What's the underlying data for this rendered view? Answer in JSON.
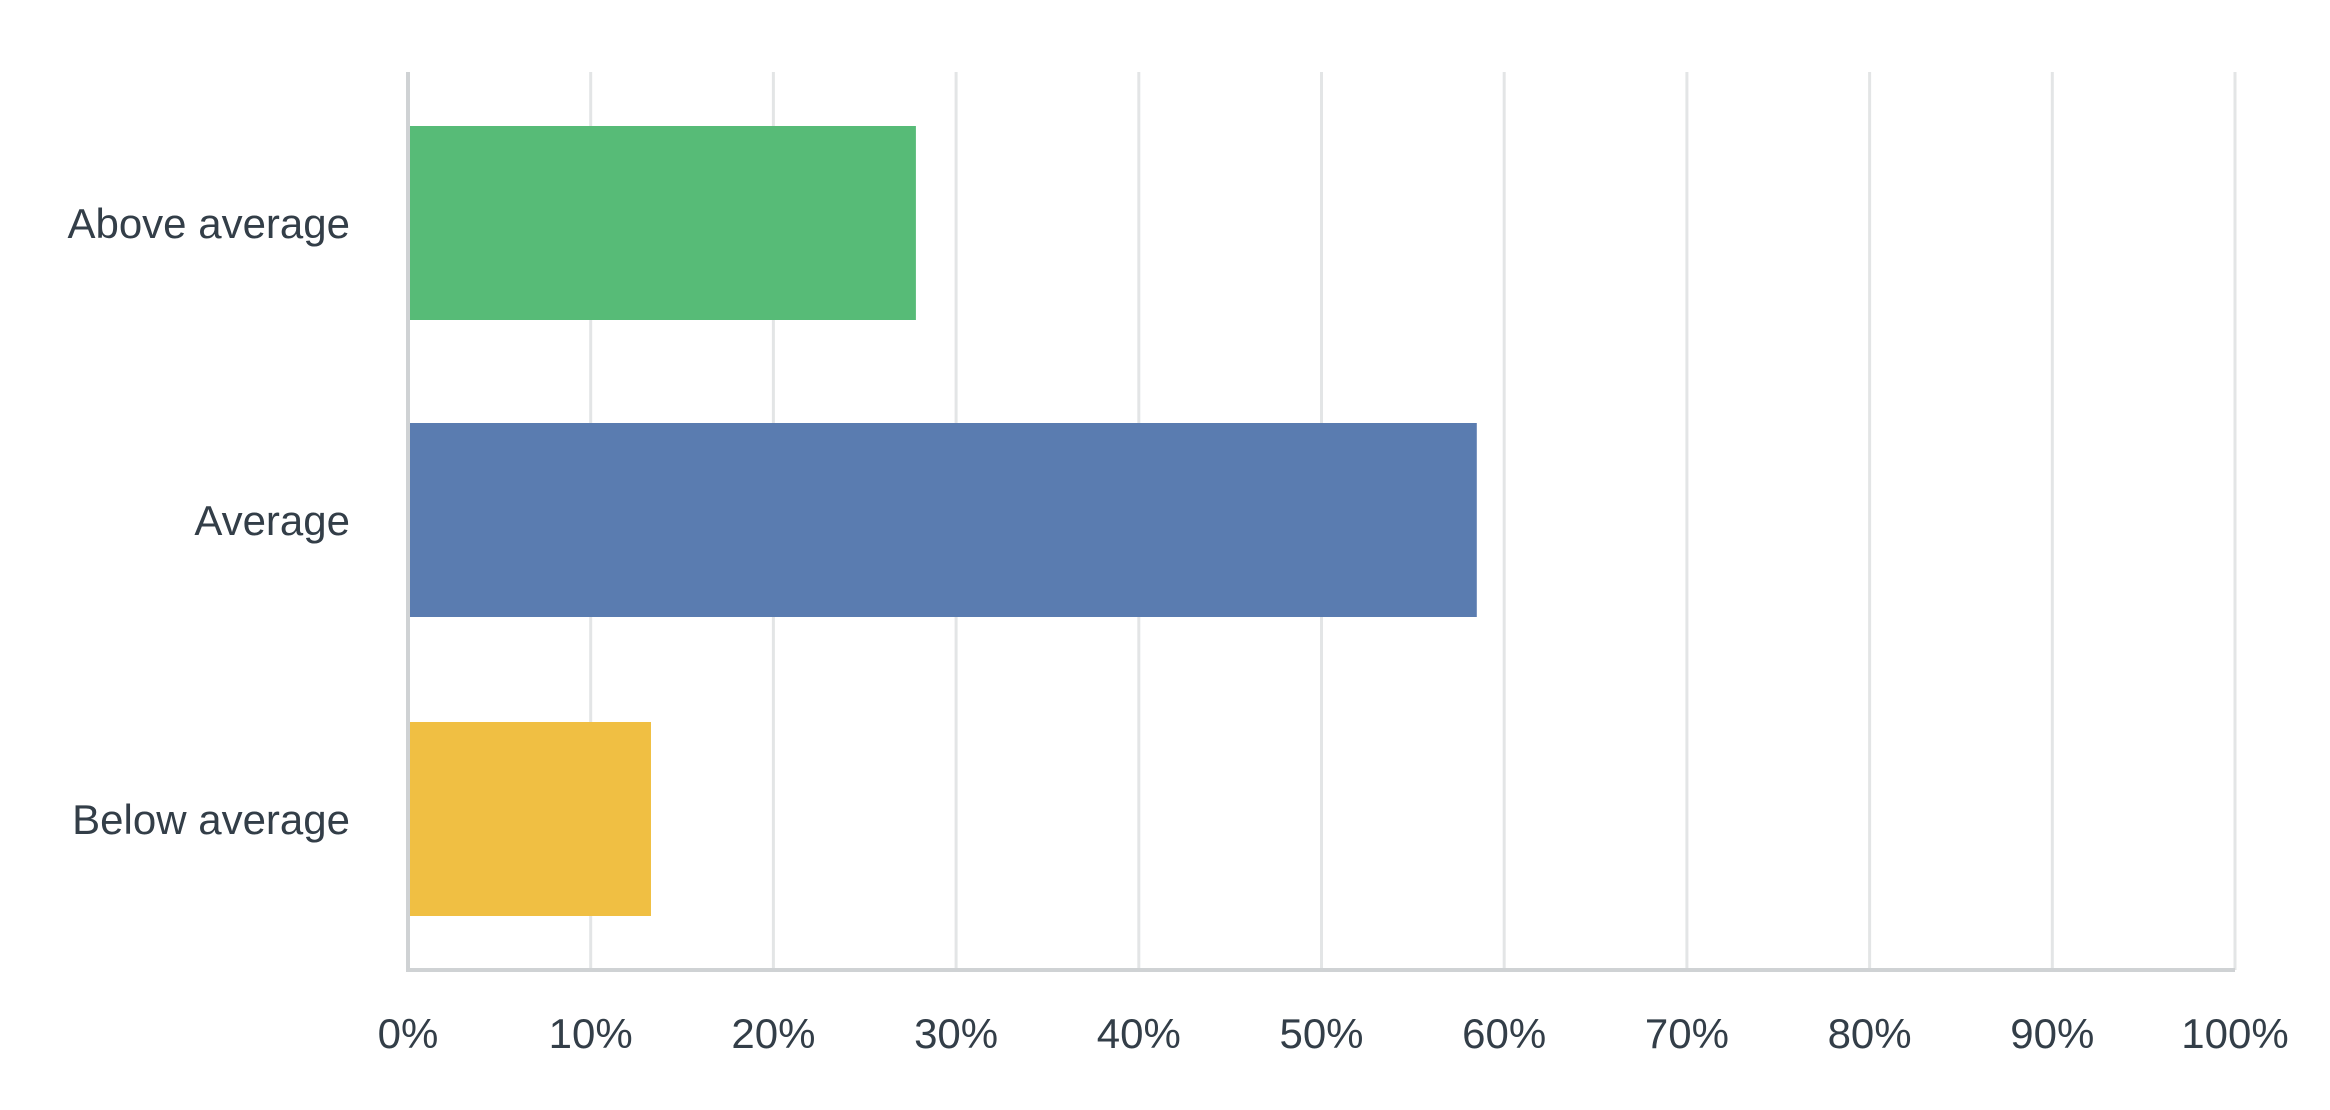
{
  "chart_data": {
    "type": "bar",
    "orientation": "horizontal",
    "categories": [
      "Above average",
      "Average",
      "Below average"
    ],
    "values": [
      27.8,
      58.5,
      13.3
    ],
    "colors": [
      "#57bb77",
      "#5a7cb0",
      "#f0bf43"
    ],
    "title": "",
    "xlabel": "",
    "ylabel": "",
    "xlim": [
      0,
      100
    ],
    "x_ticks": [
      0,
      10,
      20,
      30,
      40,
      50,
      60,
      70,
      80,
      90,
      100
    ],
    "x_tick_labels": [
      "0%",
      "10%",
      "20%",
      "30%",
      "40%",
      "50%",
      "60%",
      "70%",
      "80%",
      "90%",
      "100%"
    ],
    "grid": true,
    "legend": "none"
  }
}
